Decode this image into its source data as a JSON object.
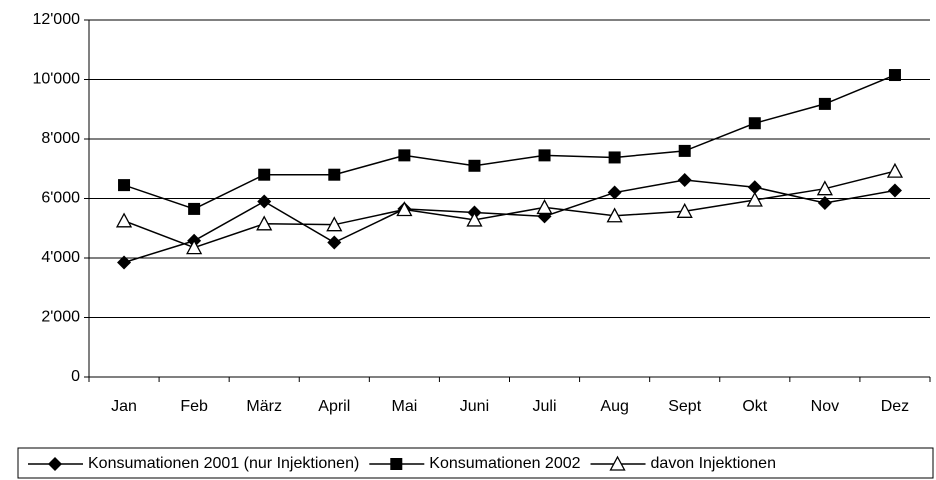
{
  "chart_data": {
    "type": "line",
    "categories": [
      "Jan",
      "Feb",
      "März",
      "April",
      "Mai",
      "Juni",
      "Juli",
      "Aug",
      "Sept",
      "Okt",
      "Nov",
      "Dez"
    ],
    "series": [
      {
        "name": "Konsumationen 2001 (nur Injektionen)",
        "color": "#000000",
        "marker": "diamond",
        "values": [
          3850,
          4580,
          5900,
          4520,
          5650,
          5530,
          5400,
          6200,
          6620,
          6380,
          5850,
          6270
        ]
      },
      {
        "name": "Konsumationen 2002",
        "color": "#000000",
        "marker": "square",
        "values": [
          6450,
          5650,
          6800,
          6800,
          7450,
          7100,
          7450,
          7380,
          7600,
          8530,
          9180,
          10150
        ]
      },
      {
        "name": "davon Injektionen",
        "color": "#000000",
        "marker": "triangle",
        "values": [
          5250,
          4350,
          5150,
          5120,
          5630,
          5280,
          5700,
          5420,
          5570,
          5950,
          6330,
          6920
        ]
      }
    ],
    "ylim": [
      0,
      12000
    ],
    "yticks": [
      0,
      {
        "value": 2000,
        "label": "2'000"
      },
      {
        "value": 4000,
        "label": "4'000"
      },
      {
        "value": 6000,
        "label": "6'000"
      },
      {
        "value": 8000,
        "label": "8'000"
      },
      {
        "value": 10000,
        "label": "10'000"
      },
      {
        "value": 12000,
        "label": "12'000"
      }
    ],
    "grid": true,
    "legend": "bottom"
  }
}
